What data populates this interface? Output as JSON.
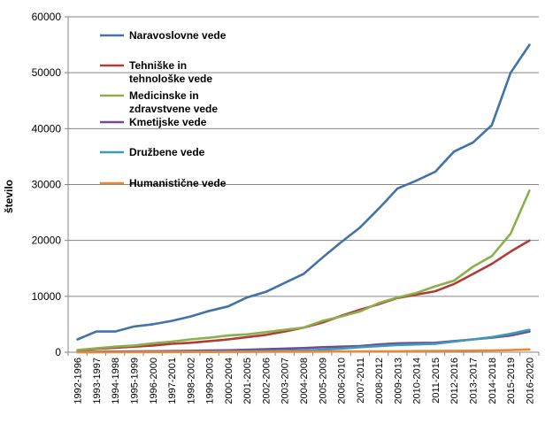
{
  "chart_data": {
    "type": "line",
    "title": "",
    "xlabel": "",
    "ylabel": "število",
    "ylim": [
      0,
      60000
    ],
    "yticks": [
      "0",
      "10000",
      "20000",
      "30000",
      "40000",
      "50000",
      "60000"
    ],
    "grid": true,
    "legend_position": "top-left",
    "categories": [
      "1992-1996",
      "1993-1997",
      "1994-1998",
      "1995-1999",
      "1996-2000",
      "1997-2001",
      "1998-2002",
      "1999-2003",
      "2000-2004",
      "2001-2005",
      "2002-2006",
      "2003-2007",
      "2004-2008",
      "2005-2009",
      "2006-2010",
      "2007-2011",
      "2008-2012",
      "2009-2013",
      "2010-2014",
      "2011-2015",
      "2012-2016",
      "2013-2017",
      "2014-2018",
      "2015-2019",
      "2016-2020"
    ],
    "series": [
      {
        "name": "Naravoslovne vede",
        "legend_lines": [
          "Naravoslovne vede"
        ],
        "color": "#4372a8",
        "values": [
          2300,
          3700,
          3700,
          4600,
          5000,
          5600,
          6400,
          7400,
          8200,
          9800,
          10800,
          12400,
          14000,
          16900,
          19700,
          22300,
          25700,
          29300,
          30700,
          32300,
          35900,
          37500,
          40600,
          50000,
          55000
        ]
      },
      {
        "name": "Tehniške in tehnološke vede",
        "legend_lines": [
          "Tehniške in",
          "tehnološke vede"
        ],
        "color": "#b23a37",
        "values": [
          300,
          600,
          800,
          1000,
          1200,
          1500,
          1700,
          2000,
          2300,
          2700,
          3100,
          3700,
          4400,
          5300,
          6500,
          7600,
          8600,
          9700,
          10300,
          10900,
          12200,
          14000,
          15800,
          18000,
          20000
        ]
      },
      {
        "name": "Medicinske in zdravstvene vede",
        "legend_lines": [
          "Medicinske in",
          "zdravstvene vede"
        ],
        "color": "#89b04a",
        "values": [
          400,
          700,
          1000,
          1200,
          1600,
          1900,
          2300,
          2600,
          3000,
          3200,
          3600,
          4000,
          4400,
          5600,
          6400,
          7300,
          8800,
          9800,
          10600,
          11800,
          12800,
          15300,
          17200,
          21200,
          28900
        ]
      },
      {
        "name": "Kmetijske vede",
        "legend_lines": [
          "Kmetijske vede"
        ],
        "color": "#6f4d92",
        "values": [
          50,
          100,
          120,
          150,
          180,
          200,
          250,
          300,
          350,
          450,
          550,
          650,
          750,
          900,
          1000,
          1100,
          1400,
          1600,
          1650,
          1700,
          2000,
          2300,
          2600,
          3000,
          3700
        ]
      },
      {
        "name": "Družbene vede",
        "legend_lines": [
          "Družbene vede"
        ],
        "color": "#3d9bb6",
        "values": [
          20,
          30,
          40,
          50,
          60,
          70,
          90,
          110,
          130,
          170,
          200,
          250,
          300,
          450,
          650,
          900,
          1100,
          1300,
          1400,
          1500,
          1900,
          2300,
          2700,
          3300,
          4000
        ]
      },
      {
        "name": "Humanistične vede",
        "legend_lines": [
          "Humanistične vede"
        ],
        "color": "#e8883a",
        "values": [
          10,
          15,
          20,
          25,
          30,
          35,
          40,
          50,
          60,
          70,
          80,
          90,
          100,
          110,
          120,
          140,
          160,
          180,
          200,
          220,
          250,
          280,
          320,
          380,
          500
        ]
      }
    ]
  }
}
